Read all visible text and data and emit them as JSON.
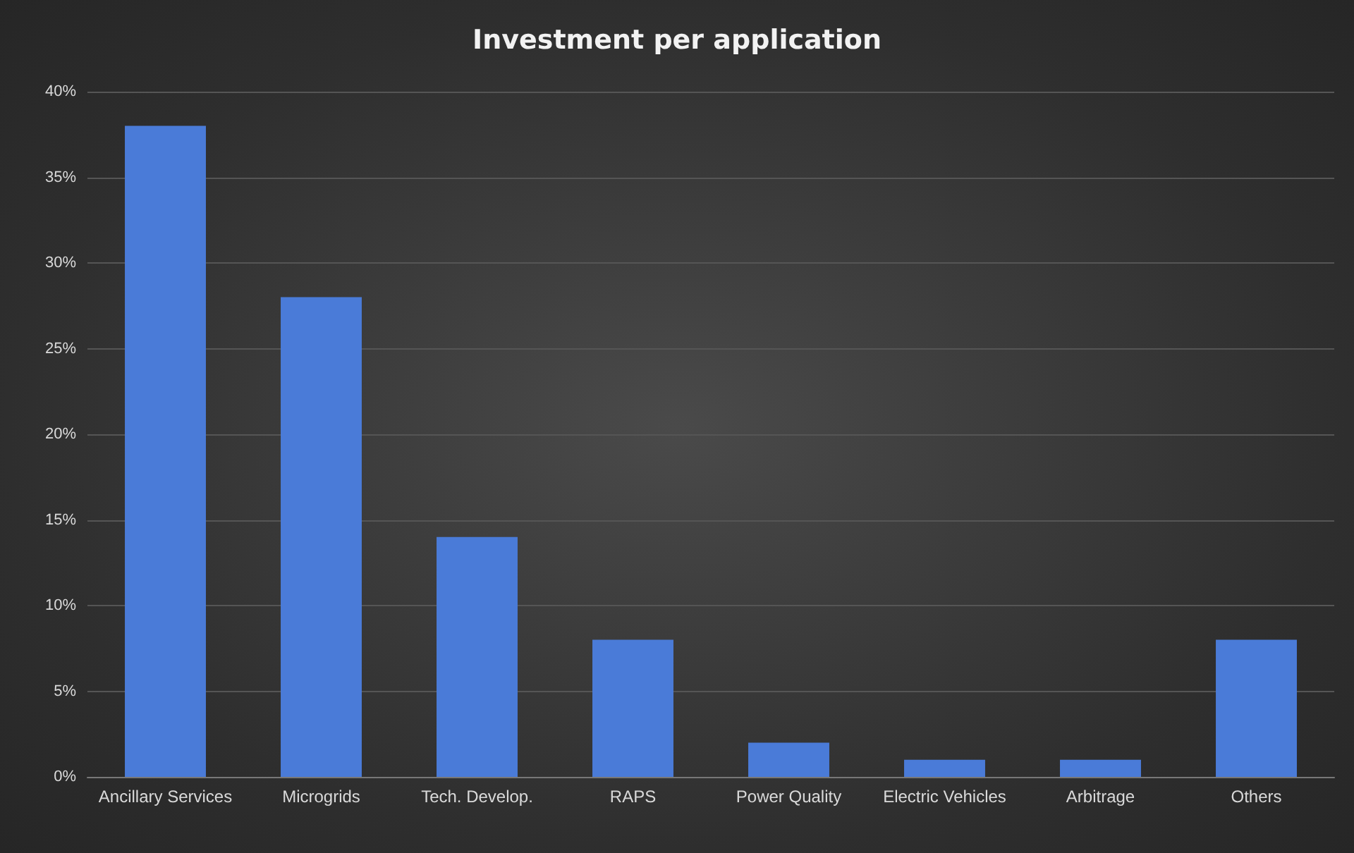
{
  "chart_data": {
    "type": "bar",
    "title": "Investment per application",
    "categories": [
      "Ancillary Services",
      "Microgrids",
      "Tech. Develop.",
      "RAPS",
      "Power Quality",
      "Electric Vehicles",
      "Arbitrage",
      "Others"
    ],
    "values": [
      38,
      28,
      14,
      8,
      2,
      1,
      1,
      8
    ],
    "color": "#4a7bd8",
    "ylim": [
      0,
      40
    ],
    "yticks": [
      {
        "value": 0,
        "label": "0%"
      },
      {
        "value": 5,
        "label": "5%"
      },
      {
        "value": 10,
        "label": "10%"
      },
      {
        "value": 15,
        "label": "15%"
      },
      {
        "value": 20,
        "label": "20%"
      },
      {
        "value": 25,
        "label": "25%"
      },
      {
        "value": 30,
        "label": "30%"
      },
      {
        "value": 35,
        "label": "35%"
      },
      {
        "value": 40,
        "label": "40%"
      }
    ],
    "grid": "y"
  }
}
